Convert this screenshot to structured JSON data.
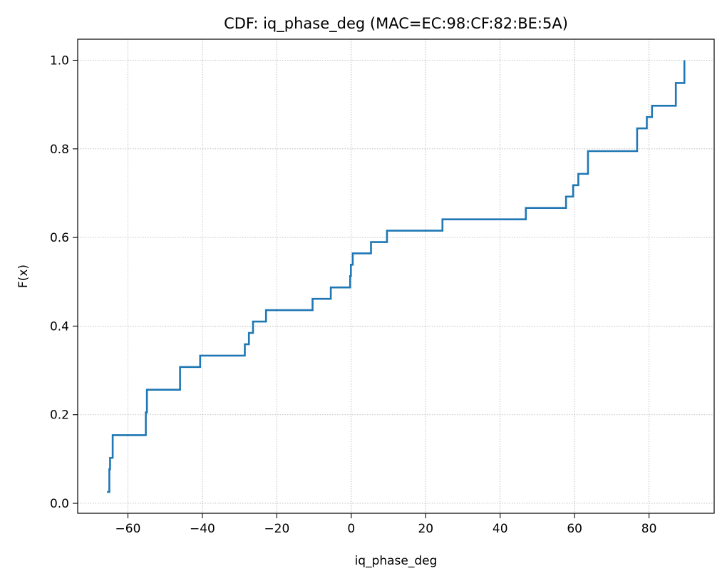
{
  "chart_data": {
    "type": "line",
    "step": "post",
    "title": "CDF: iq_phase_deg (MAC=EC:98:CF:82:BE:5A)",
    "xlabel": "iq_phase_deg",
    "ylabel": "F(x)",
    "xlim": [
      -73.5,
      97.5
    ],
    "ylim": [
      -0.0225,
      1.0475
    ],
    "xticks": [
      -60,
      -40,
      -20,
      0,
      20,
      40,
      60,
      80
    ],
    "xtick_labels": [
      "−60",
      "−40",
      "−20",
      "0",
      "20",
      "40",
      "60",
      "80"
    ],
    "yticks": [
      0.0,
      0.2,
      0.4,
      0.6,
      0.8,
      1.0
    ],
    "ytick_labels": [
      "0.0",
      "0.2",
      "0.4",
      "0.6",
      "0.8",
      "1.0"
    ],
    "grid": true,
    "color": "#1f77b4",
    "series": [
      {
        "x": [
          -65.6,
          -65.0,
          -64.8,
          -64.1,
          -55.2,
          -54.9,
          -46.0,
          -40.6,
          -28.6,
          -27.5,
          -26.4,
          -22.9,
          -10.4,
          -5.5,
          -0.3,
          -0.1,
          0.4,
          5.3,
          9.6,
          24.5,
          46.9,
          57.7,
          59.6,
          61.0,
          63.6,
          76.8,
          79.4,
          80.8,
          87.2,
          89.5
        ],
        "y": [
          0.0256,
          0.0769,
          0.1026,
          0.1538,
          0.2051,
          0.2564,
          0.3077,
          0.3333,
          0.359,
          0.3846,
          0.4103,
          0.4359,
          0.4615,
          0.4872,
          0.5128,
          0.5385,
          0.5641,
          0.5897,
          0.6154,
          0.641,
          0.6667,
          0.6923,
          0.7179,
          0.7436,
          0.7949,
          0.8462,
          0.8718,
          0.8974,
          0.9487,
          1.0
        ]
      }
    ]
  }
}
